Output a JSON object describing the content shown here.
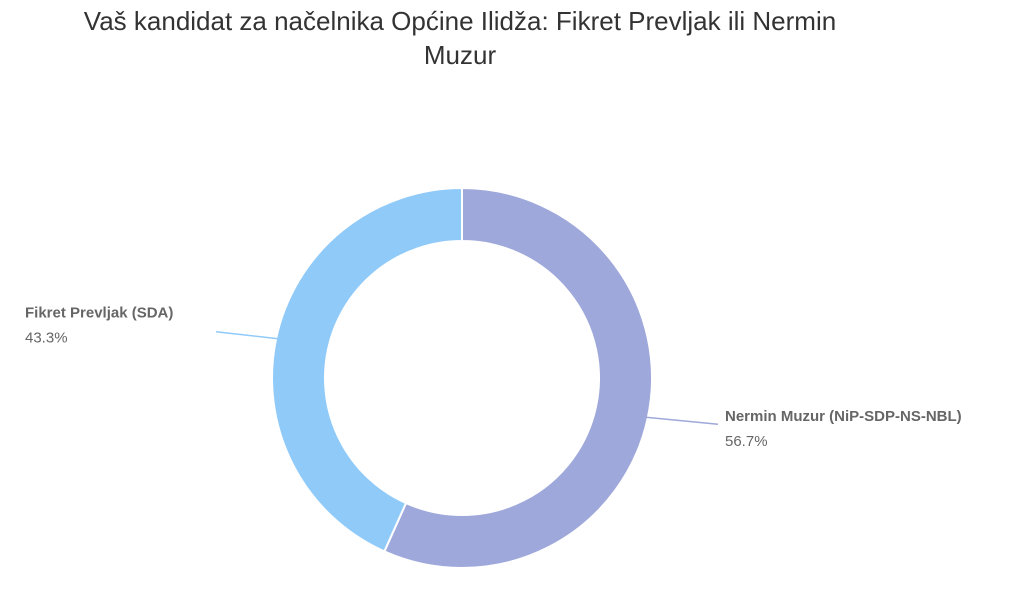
{
  "chart_data": {
    "type": "pie",
    "title": "Vaš kandidat za načelnika Općine Ilidža: Fikret Prevljak ili Nermin Muzur",
    "categories": [
      "Nermin Muzur (NiP-SDP-NS-NBL)",
      "Fikret Prevljak (SDA)"
    ],
    "values": [
      56.7,
      43.3
    ],
    "value_labels": [
      "56.7%",
      "43.3%"
    ],
    "colors": [
      "#9fa8da",
      "#90caf9"
    ]
  }
}
